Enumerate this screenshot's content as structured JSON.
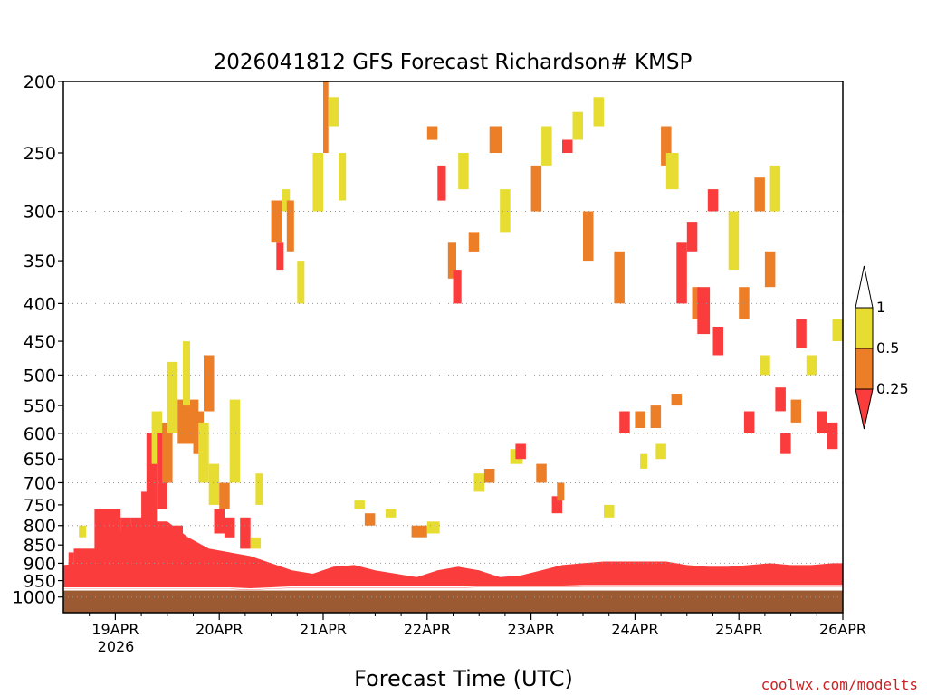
{
  "chart_data": {
    "type": "heatmap",
    "title": "2026041812 GFS Forecast Richardson# KMSP",
    "xlabel": "Forecast Time (UTC)",
    "credit": "coolwx.com/modelts",
    "y_ticks": [
      "200",
      "250",
      "300",
      "350",
      "400",
      "450",
      "500",
      "550",
      "600",
      "650",
      "700",
      "750",
      "800",
      "850",
      "900",
      "950",
      "1000"
    ],
    "y_levels": [
      200,
      250,
      300,
      350,
      400,
      450,
      500,
      550,
      600,
      650,
      700,
      750,
      800,
      850,
      900,
      950,
      1000
    ],
    "y_gridlines": [
      300,
      400,
      500,
      600,
      700,
      800,
      900,
      1000
    ],
    "x_ticks": [
      "19APR",
      "20APR",
      "21APR",
      "22APR",
      "23APR",
      "24APR",
      "25APR",
      "26APR"
    ],
    "x_tick_times": [
      1,
      2,
      3,
      4,
      5,
      6,
      7,
      8
    ],
    "x_sublabel": "2026",
    "x_start": 0.5,
    "x_end": 8.0,
    "colorbar": {
      "labels": [
        "1",
        "0.5",
        "0.25"
      ],
      "bins": [
        {
          "range": "0.5-1",
          "color": "#e6dc32"
        },
        {
          "range": "0.25-0.5",
          "color": "#ec7e28"
        },
        {
          "range": "<0.25",
          "color": "#fa3c3c"
        }
      ]
    },
    "colors": {
      "ground": "#9c5a32",
      "low": "#fa3c3c",
      "mid": "#ec7e28",
      "high": "#e6dc32"
    },
    "boundary_layer": {
      "t": [
        0.5,
        0.7,
        0.9,
        1.1,
        1.3,
        1.5,
        1.7,
        1.9,
        2.1,
        2.3,
        2.5,
        2.7,
        2.9,
        3.1,
        3.3,
        3.5,
        3.7,
        3.9,
        4.1,
        4.3,
        4.5,
        4.7,
        4.9,
        5.1,
        5.3,
        5.5,
        5.7,
        5.9,
        6.1,
        6.3,
        6.5,
        6.7,
        6.9,
        7.1,
        7.3,
        7.5,
        7.7,
        7.9,
        8.0
      ],
      "top_p": [
        905,
        900,
        860,
        800,
        790,
        790,
        830,
        860,
        870,
        880,
        900,
        920,
        930,
        910,
        905,
        920,
        930,
        940,
        920,
        910,
        920,
        940,
        935,
        920,
        905,
        900,
        895,
        895,
        895,
        895,
        905,
        910,
        910,
        905,
        900,
        905,
        905,
        900,
        900
      ],
      "bottom_p": [
        975,
        975,
        975,
        975,
        975,
        975,
        975,
        975,
        975,
        978,
        975,
        972,
        972,
        972,
        972,
        972,
        972,
        972,
        972,
        972,
        970,
        970,
        970,
        970,
        970,
        968,
        968,
        968,
        968,
        968,
        968,
        968,
        968,
        968,
        968,
        968,
        968,
        968,
        968
      ]
    },
    "blocks": [
      [
        0.55,
        0.6,
        950,
        870,
        "low"
      ],
      [
        0.6,
        0.8,
        920,
        860,
        "low"
      ],
      [
        0.65,
        0.72,
        830,
        800,
        "high"
      ],
      [
        0.8,
        1.05,
        940,
        760,
        "low"
      ],
      [
        0.95,
        1.05,
        900,
        840,
        "low"
      ],
      [
        1.05,
        1.15,
        920,
        780,
        "low"
      ],
      [
        1.15,
        1.3,
        900,
        780,
        "low"
      ],
      [
        1.25,
        1.35,
        860,
        720,
        "low"
      ],
      [
        1.3,
        1.4,
        800,
        600,
        "low"
      ],
      [
        1.35,
        1.45,
        660,
        560,
        "high"
      ],
      [
        1.4,
        1.5,
        760,
        600,
        "low"
      ],
      [
        1.45,
        1.55,
        700,
        580,
        "mid"
      ],
      [
        1.5,
        1.6,
        600,
        480,
        "high"
      ],
      [
        1.55,
        1.65,
        900,
        800,
        "low"
      ],
      [
        1.6,
        1.8,
        620,
        540,
        "mid"
      ],
      [
        1.65,
        1.72,
        550,
        450,
        "high"
      ],
      [
        1.75,
        1.85,
        640,
        560,
        "mid"
      ],
      [
        1.8,
        1.9,
        700,
        580,
        "high"
      ],
      [
        1.85,
        1.95,
        560,
        470,
        "mid"
      ],
      [
        1.9,
        2.0,
        750,
        660,
        "high"
      ],
      [
        1.95,
        2.05,
        820,
        760,
        "low"
      ],
      [
        2.0,
        2.1,
        760,
        700,
        "mid"
      ],
      [
        2.05,
        2.15,
        830,
        780,
        "low"
      ],
      [
        2.1,
        2.2,
        700,
        540,
        "high"
      ],
      [
        2.2,
        2.3,
        860,
        780,
        "low"
      ],
      [
        2.3,
        2.4,
        860,
        830,
        "high"
      ],
      [
        2.35,
        2.42,
        750,
        680,
        "high"
      ],
      [
        2.5,
        2.6,
        330,
        290,
        "mid"
      ],
      [
        2.55,
        2.62,
        360,
        330,
        "low"
      ],
      [
        2.6,
        2.68,
        300,
        280,
        "high"
      ],
      [
        2.65,
        2.72,
        340,
        290,
        "mid"
      ],
      [
        2.75,
        2.82,
        400,
        350,
        "high"
      ],
      [
        2.9,
        3.0,
        300,
        250,
        "high"
      ],
      [
        3.0,
        3.05,
        250,
        200,
        "mid"
      ],
      [
        3.05,
        3.15,
        230,
        210,
        "high"
      ],
      [
        3.15,
        3.22,
        290,
        250,
        "high"
      ],
      [
        3.3,
        3.4,
        760,
        740,
        "high"
      ],
      [
        3.4,
        3.5,
        800,
        770,
        "mid"
      ],
      [
        3.6,
        3.7,
        780,
        760,
        "high"
      ],
      [
        3.85,
        4.0,
        830,
        800,
        "mid"
      ],
      [
        4.0,
        4.12,
        820,
        790,
        "high"
      ],
      [
        4.0,
        4.1,
        240,
        230,
        "mid"
      ],
      [
        4.1,
        4.18,
        290,
        260,
        "low"
      ],
      [
        4.2,
        4.28,
        370,
        330,
        "mid"
      ],
      [
        4.25,
        4.33,
        400,
        360,
        "low"
      ],
      [
        4.3,
        4.4,
        280,
        250,
        "high"
      ],
      [
        4.4,
        4.5,
        340,
        320,
        "mid"
      ],
      [
        4.45,
        4.55,
        720,
        680,
        "high"
      ],
      [
        4.55,
        4.65,
        700,
        670,
        "mid"
      ],
      [
        4.6,
        4.72,
        250,
        230,
        "mid"
      ],
      [
        4.7,
        4.8,
        320,
        280,
        "high"
      ],
      [
        4.8,
        4.92,
        660,
        630,
        "high"
      ],
      [
        4.85,
        4.95,
        650,
        620,
        "low"
      ],
      [
        5.0,
        5.1,
        300,
        260,
        "mid"
      ],
      [
        5.05,
        5.15,
        700,
        660,
        "mid"
      ],
      [
        5.1,
        5.2,
        260,
        230,
        "high"
      ],
      [
        5.2,
        5.3,
        770,
        730,
        "low"
      ],
      [
        5.25,
        5.32,
        740,
        700,
        "mid"
      ],
      [
        5.3,
        5.4,
        250,
        240,
        "low"
      ],
      [
        5.4,
        5.5,
        240,
        220,
        "high"
      ],
      [
        5.5,
        5.6,
        350,
        300,
        "mid"
      ],
      [
        5.6,
        5.7,
        230,
        210,
        "high"
      ],
      [
        5.7,
        5.8,
        780,
        750,
        "high"
      ],
      [
        5.8,
        5.9,
        400,
        340,
        "mid"
      ],
      [
        5.85,
        5.95,
        600,
        560,
        "low"
      ],
      [
        6.0,
        6.1,
        590,
        560,
        "mid"
      ],
      [
        6.05,
        6.12,
        670,
        640,
        "high"
      ],
      [
        6.15,
        6.25,
        590,
        550,
        "mid"
      ],
      [
        6.2,
        6.3,
        650,
        620,
        "high"
      ],
      [
        6.25,
        6.35,
        260,
        230,
        "mid"
      ],
      [
        6.3,
        6.42,
        280,
        250,
        "high"
      ],
      [
        6.35,
        6.45,
        550,
        530,
        "mid"
      ],
      [
        6.4,
        6.5,
        400,
        330,
        "low"
      ],
      [
        6.5,
        6.6,
        340,
        310,
        "low"
      ],
      [
        6.55,
        6.62,
        420,
        380,
        "mid"
      ],
      [
        6.6,
        6.72,
        440,
        380,
        "low"
      ],
      [
        6.7,
        6.8,
        300,
        280,
        "low"
      ],
      [
        6.75,
        6.85,
        470,
        430,
        "low"
      ],
      [
        6.9,
        7.0,
        360,
        300,
        "high"
      ],
      [
        7.0,
        7.1,
        420,
        380,
        "mid"
      ],
      [
        7.05,
        7.15,
        600,
        560,
        "low"
      ],
      [
        7.15,
        7.25,
        300,
        270,
        "mid"
      ],
      [
        7.2,
        7.3,
        500,
        470,
        "high"
      ],
      [
        7.25,
        7.35,
        380,
        340,
        "mid"
      ],
      [
        7.35,
        7.45,
        560,
        520,
        "low"
      ],
      [
        7.4,
        7.5,
        640,
        600,
        "low"
      ],
      [
        7.5,
        7.6,
        580,
        540,
        "mid"
      ],
      [
        7.55,
        7.65,
        460,
        420,
        "low"
      ],
      [
        7.65,
        7.75,
        500,
        470,
        "high"
      ],
      [
        7.75,
        7.85,
        600,
        560,
        "low"
      ],
      [
        7.85,
        7.95,
        630,
        580,
        "low"
      ],
      [
        7.9,
        8.0,
        450,
        420,
        "high"
      ],
      [
        7.3,
        7.4,
        300,
        260,
        "high"
      ]
    ]
  }
}
